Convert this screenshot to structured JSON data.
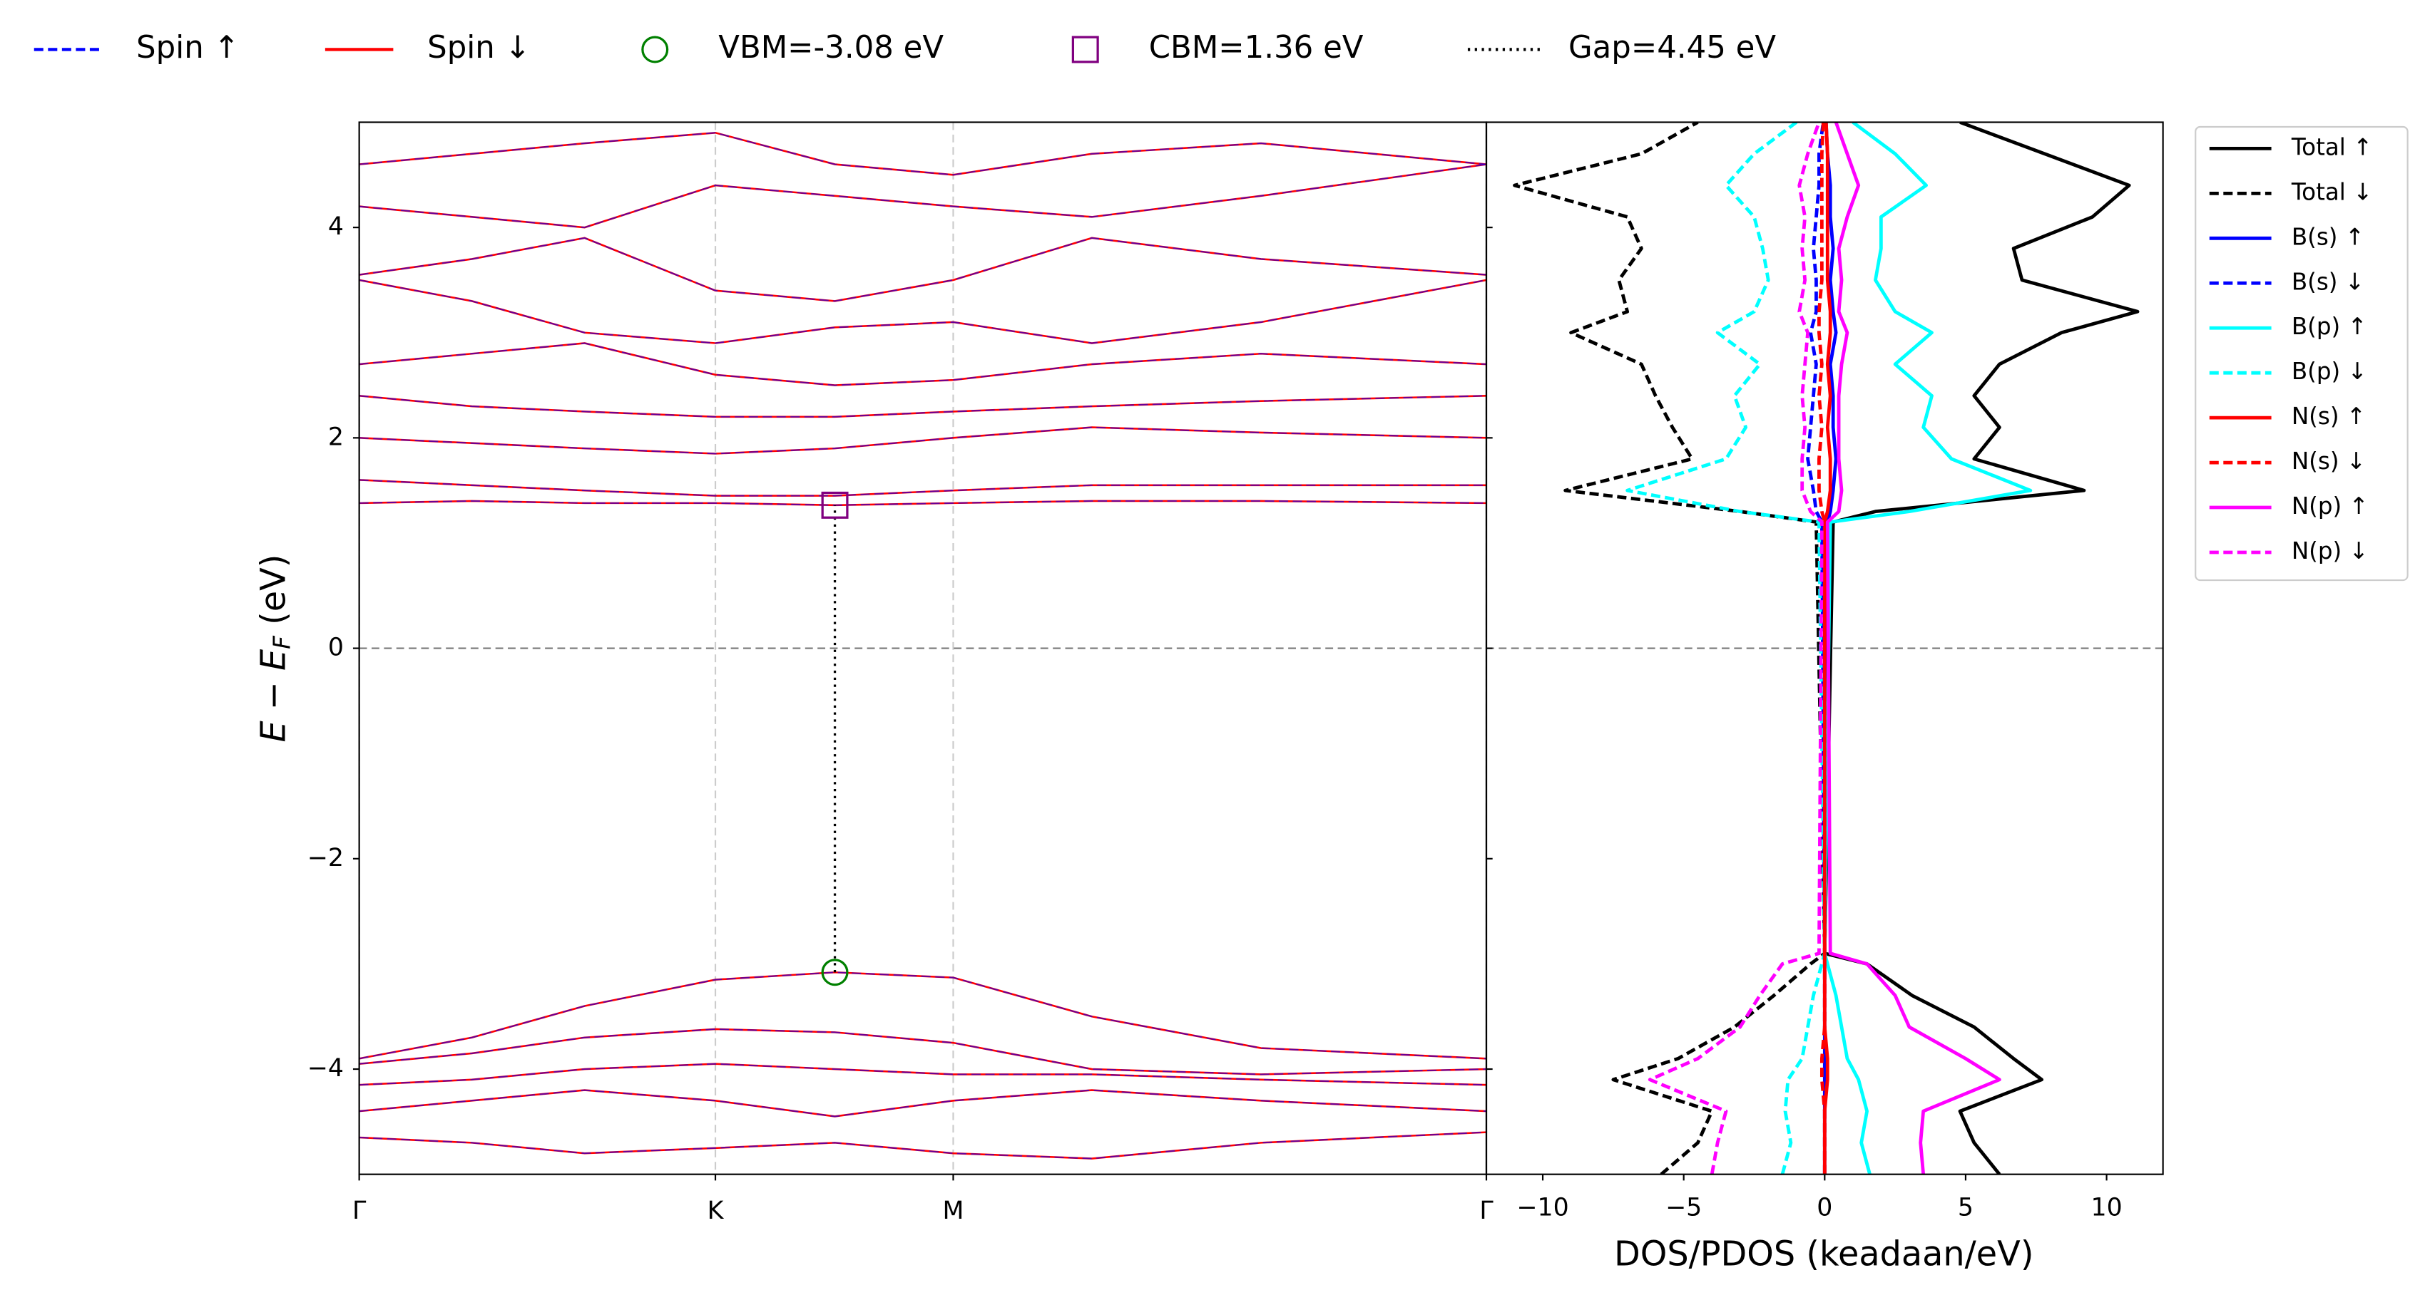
{
  "chart_data": [
    {
      "type": "bands",
      "x": [
        0,
        0.1,
        0.2,
        0.316,
        0.422,
        0.527,
        0.65,
        0.8,
        1
      ],
      "xlim": [
        0,
        1
      ],
      "xticks": [
        {
          "value": 0,
          "label": "Γ"
        },
        {
          "value": 0.316,
          "label": "K"
        },
        {
          "value": 0.527,
          "label": "M"
        },
        {
          "value": 1,
          "label": "Γ"
        }
      ],
      "ylim": [
        -5,
        5
      ],
      "yticks": [
        {
          "value": -4,
          "label": "−4"
        },
        {
          "value": -2,
          "label": "−2"
        },
        0,
        2,
        4
      ],
      "ylabel": {
        "main": "E − E",
        "sub": "F",
        "unit": " (eV)"
      },
      "fermi_level": 0,
      "series": [
        {
          "name": "Spin ↑",
          "color": "#0000ff",
          "dash": "dashed",
          "bands": [
            [
              -3.9,
              -3.7,
              -3.4,
              -3.15,
              -3.08,
              -3.13,
              -3.5,
              -3.8,
              -3.9
            ],
            [
              -3.95,
              -3.85,
              -3.7,
              -3.62,
              -3.65,
              -3.75,
              -4.0,
              -4.05,
              -4.0
            ],
            [
              -4.15,
              -4.1,
              -4.0,
              -3.95,
              -4.0,
              -4.05,
              -4.05,
              -4.1,
              -4.15
            ],
            [
              -4.4,
              -4.3,
              -4.2,
              -4.3,
              -4.45,
              -4.3,
              -4.2,
              -4.3,
              -4.4
            ],
            [
              -4.65,
              -4.7,
              -4.8,
              -4.75,
              -4.7,
              -4.8,
              -4.85,
              -4.7,
              -4.6
            ],
            [
              1.38,
              1.4,
              1.38,
              1.38,
              1.36,
              1.38,
              1.4,
              1.4,
              1.38
            ],
            [
              1.6,
              1.55,
              1.5,
              1.45,
              1.45,
              1.5,
              1.55,
              1.55,
              1.55
            ],
            [
              2.0,
              1.95,
              1.9,
              1.85,
              1.9,
              2.0,
              2.1,
              2.05,
              2.0
            ],
            [
              2.4,
              2.3,
              2.25,
              2.2,
              2.2,
              2.25,
              2.3,
              2.35,
              2.4
            ],
            [
              2.7,
              2.8,
              2.9,
              2.6,
              2.5,
              2.55,
              2.7,
              2.8,
              2.7
            ],
            [
              3.5,
              3.3,
              3.0,
              2.9,
              3.05,
              3.1,
              2.9,
              3.1,
              3.5
            ],
            [
              3.55,
              3.7,
              3.9,
              3.4,
              3.3,
              3.5,
              3.9,
              3.7,
              3.55
            ],
            [
              4.2,
              4.1,
              4.0,
              4.4,
              4.3,
              4.2,
              4.1,
              4.3,
              4.6
            ],
            [
              4.6,
              4.7,
              4.8,
              4.9,
              4.6,
              4.5,
              4.7,
              4.8,
              4.6
            ]
          ]
        },
        {
          "name": "Spin ↓",
          "color": "#ff0000",
          "dash": "solid",
          "bands": [
            [
              -3.9,
              -3.7,
              -3.4,
              -3.15,
              -3.08,
              -3.13,
              -3.5,
              -3.8,
              -3.9
            ],
            [
              -3.95,
              -3.85,
              -3.7,
              -3.62,
              -3.65,
              -3.75,
              -4.0,
              -4.05,
              -4.0
            ],
            [
              -4.15,
              -4.1,
              -4.0,
              -3.95,
              -4.0,
              -4.05,
              -4.05,
              -4.1,
              -4.15
            ],
            [
              -4.4,
              -4.3,
              -4.2,
              -4.3,
              -4.45,
              -4.3,
              -4.2,
              -4.3,
              -4.4
            ],
            [
              -4.65,
              -4.7,
              -4.8,
              -4.75,
              -4.7,
              -4.8,
              -4.85,
              -4.7,
              -4.6
            ],
            [
              1.38,
              1.4,
              1.38,
              1.38,
              1.36,
              1.38,
              1.4,
              1.4,
              1.38
            ],
            [
              1.6,
              1.55,
              1.5,
              1.45,
              1.45,
              1.5,
              1.55,
              1.55,
              1.55
            ],
            [
              2.0,
              1.95,
              1.9,
              1.85,
              1.9,
              2.0,
              2.1,
              2.05,
              2.0
            ],
            [
              2.4,
              2.3,
              2.25,
              2.2,
              2.2,
              2.25,
              2.3,
              2.35,
              2.4
            ],
            [
              2.7,
              2.8,
              2.9,
              2.6,
              2.5,
              2.55,
              2.7,
              2.8,
              2.7
            ],
            [
              3.5,
              3.3,
              3.0,
              2.9,
              3.05,
              3.1,
              2.9,
              3.1,
              3.5
            ],
            [
              3.55,
              3.7,
              3.9,
              3.4,
              3.3,
              3.5,
              3.9,
              3.7,
              3.55
            ],
            [
              4.2,
              4.1,
              4.0,
              4.4,
              4.3,
              4.2,
              4.1,
              4.3,
              4.6
            ],
            [
              4.6,
              4.7,
              4.8,
              4.9,
              4.6,
              4.5,
              4.7,
              4.8,
              4.6
            ]
          ]
        }
      ],
      "vbm": {
        "name": "VBM=-3.08 eV",
        "x": 0.422,
        "y": -3.08,
        "color": "#008000"
      },
      "cbm": {
        "name": "CBM=1.36 eV",
        "x": 0.422,
        "y": 1.36,
        "color": "#800080"
      },
      "gap": {
        "name": "Gap=4.45 eV",
        "color": "#000000"
      }
    },
    {
      "type": "dos",
      "y": [
        -5,
        -4.7,
        -4.4,
        -4.1,
        -3.9,
        -3.6,
        -3.3,
        -3.0,
        -2.9,
        1.2,
        1.3,
        1.5,
        1.8,
        2.1,
        2.4,
        2.7,
        3.0,
        3.2,
        3.5,
        3.8,
        4.1,
        4.4,
        4.7,
        5.0
      ],
      "xlim": [
        -12,
        12
      ],
      "xticks": [
        {
          "value": -10,
          "label": "−10"
        },
        {
          "value": -5,
          "label": "−5"
        },
        0,
        5,
        10
      ],
      "xlabel": "DOS/PDOS (keadaan/eV)",
      "legend": "outside-right",
      "series": [
        {
          "name": "Total ↑",
          "color": "#000000",
          "dash": "solid",
          "values": [
            6.2,
            5.3,
            4.8,
            7.7,
            6.7,
            5.3,
            3.1,
            1.5,
            0,
            0.3,
            1.8,
            9.2,
            5.3,
            6.2,
            5.3,
            6.2,
            8.4,
            11.1,
            7,
            6.7,
            9.5,
            10.8,
            7.8,
            4.8
          ]
        },
        {
          "name": "Total ↓",
          "color": "#000000",
          "dash": "dashed",
          "values": [
            -5.8,
            -4.5,
            -4,
            -7.5,
            -5.2,
            -3.2,
            -1.8,
            -0.5,
            0,
            -0.3,
            -3,
            -9.2,
            -4.7,
            -5.4,
            -6,
            -6.5,
            -9,
            -7,
            -7.3,
            -6.5,
            -7,
            -11,
            -6.5,
            -4.5
          ]
        },
        {
          "name": "B(s) ↑",
          "color": "#0000ff",
          "dash": "solid",
          "values": [
            0,
            0,
            0,
            0,
            0,
            0,
            0,
            0,
            0,
            0.1,
            0.2,
            0.3,
            0.4,
            0.3,
            0.3,
            0.2,
            0.4,
            0.3,
            0.2,
            0.3,
            0.2,
            0.2,
            0.1,
            0.05
          ]
        },
        {
          "name": "B(s) ↓",
          "color": "#0000ff",
          "dash": "dashed",
          "values": [
            0,
            0,
            0,
            0,
            0,
            0,
            0,
            0,
            0,
            -0.1,
            -0.3,
            -0.4,
            -0.6,
            -0.5,
            -0.4,
            -0.3,
            -0.5,
            -0.3,
            -0.3,
            -0.4,
            -0.3,
            -0.2,
            -0.2,
            -0.05
          ]
        },
        {
          "name": "B(p) ↑",
          "color": "#00ffff",
          "dash": "solid",
          "values": [
            1.6,
            1.3,
            1.5,
            1.2,
            0.8,
            0.6,
            0.4,
            0.1,
            0,
            0.2,
            3,
            7.3,
            4.5,
            3.5,
            3.8,
            2.5,
            3.8,
            2.5,
            1.8,
            2,
            2,
            3.6,
            2.5,
            1
          ]
        },
        {
          "name": "B(p) ↓",
          "color": "#00ffff",
          "dash": "dashed",
          "values": [
            -1.5,
            -1.2,
            -1.4,
            -1.3,
            -0.8,
            -0.6,
            -0.4,
            -0.1,
            0,
            -0.2,
            -3,
            -7,
            -3.5,
            -2.8,
            -3.2,
            -2.3,
            -3.8,
            -2.5,
            -2,
            -2.2,
            -2.5,
            -3.5,
            -2.5,
            -1
          ]
        },
        {
          "name": "N(s) ↑",
          "color": "#ff0000",
          "dash": "solid",
          "values": [
            0,
            0,
            0,
            0.1,
            0.1,
            0,
            0,
            0,
            0,
            0,
            0.1,
            0.2,
            0.2,
            0.1,
            0.2,
            0.1,
            0.2,
            0.2,
            0.1,
            0.1,
            0.1,
            0.1,
            0.1,
            0.05
          ]
        },
        {
          "name": "N(s) ↓",
          "color": "#ff0000",
          "dash": "dashed",
          "values": [
            0,
            0,
            0,
            -0.1,
            -0.1,
            0,
            0,
            0,
            0,
            0,
            -0.1,
            -0.2,
            -0.2,
            -0.1,
            -0.2,
            -0.1,
            -0.2,
            -0.2,
            -0.1,
            -0.1,
            -0.1,
            -0.1,
            -0.1,
            -0.05
          ]
        },
        {
          "name": "N(p) ↑",
          "color": "#ff00ff",
          "dash": "solid",
          "values": [
            3.5,
            3.4,
            3.5,
            6.2,
            5,
            3,
            2.5,
            1.5,
            0.2,
            0.1,
            0.5,
            0.6,
            0.5,
            0.5,
            0.5,
            0.6,
            0.8,
            0.5,
            0.6,
            0.5,
            0.8,
            1.2,
            0.8,
            0.4
          ]
        },
        {
          "name": "N(p) ↓",
          "color": "#ff00ff",
          "dash": "dashed",
          "values": [
            -4,
            -3.8,
            -3.5,
            -6.2,
            -4.5,
            -3,
            -2.3,
            -1.5,
            -0.2,
            -0.1,
            -0.5,
            -0.8,
            -0.8,
            -0.7,
            -0.8,
            -0.7,
            -0.6,
            -0.9,
            -0.7,
            -0.8,
            -0.7,
            -0.9,
            -0.6,
            -0.2
          ]
        }
      ]
    }
  ]
}
